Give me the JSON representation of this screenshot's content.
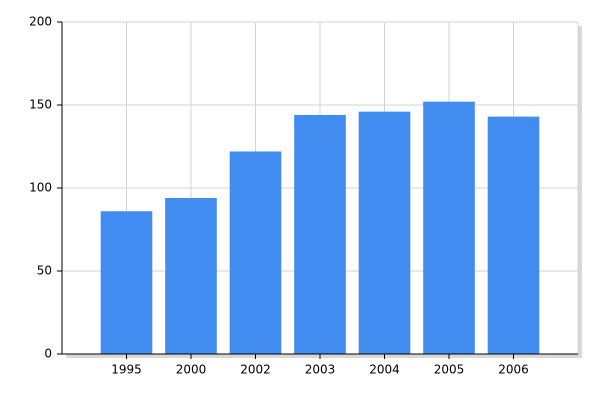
{
  "chart_data": {
    "type": "bar",
    "categories": [
      "1995",
      "2000",
      "2002",
      "2003",
      "2004",
      "2005",
      "2006"
    ],
    "values": [
      86,
      94,
      122,
      144,
      146,
      152,
      143
    ],
    "color": "#418cf0",
    "ylim": [
      0,
      200
    ],
    "yticks": [
      0,
      50,
      100,
      150,
      200
    ],
    "grid": true
  }
}
